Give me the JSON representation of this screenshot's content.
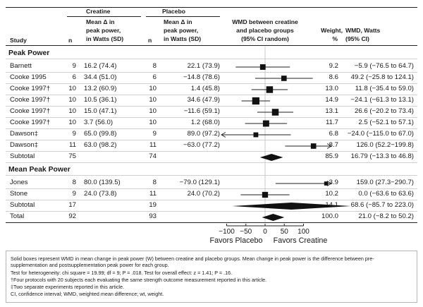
{
  "columns": {
    "creatine_group": "Creatine",
    "placebo_group": "Placebo",
    "study": "Study",
    "n": "n",
    "mean_change_line1": "Mean Δ in",
    "mean_change_line2": "peak power,",
    "mean_change_line3": "in Watts (SD)",
    "wmd_plot_line1": "WMD between creatine",
    "wmd_plot_line2": "and placebo groups",
    "wmd_plot_line3": "(95% CI random)",
    "weight_line1": "Weight,",
    "weight_line2": "%",
    "wmd_line1": "WMD, Watts",
    "wmd_line2": "(95% CI)"
  },
  "sections": [
    {
      "title": "Peak Power",
      "rows": [
        {
          "study": "Barnett",
          "n_c": "9",
          "cre": "16.2 (74.4)",
          "n_p": "8",
          "pla": "22.1 (73.9)",
          "weight": "9.2",
          "wmd": "−5.9 (−76.5 to 64.7)"
        },
        {
          "study": "Cooke 1995",
          "n_c": "6",
          "cre": "34.4 (51.0)",
          "n_p": "6",
          "pla": "−14.8 (78.6)",
          "weight": "8.6",
          "wmd": "49.2 (−25.8 to 124.1)"
        },
        {
          "study": "Cooke 1997†",
          "n_c": "10",
          "cre": "13.2 (60.9)",
          "n_p": "10",
          "pla": "1.4 (45.8)",
          "weight": "13.0",
          "wmd": "11.8 (−35.4 to 59.0)"
        },
        {
          "study": "Cooke 1997†",
          "n_c": "10",
          "cre": "10.5 (36.1)",
          "n_p": "10",
          "pla": "34.6 (47.9)",
          "weight": "14.9",
          "wmd": "−24.1 (−61.3 to 13.1)"
        },
        {
          "study": "Cooke 1997†",
          "n_c": "10",
          "cre": "15.0 (47.1)",
          "n_p": "10",
          "pla": "−11.6 (59.1)",
          "weight": "13.1",
          "wmd": "26.6 (−20.2 to 73.4)"
        },
        {
          "study": "Cooke 1997†",
          "n_c": "10",
          "cre": "3.7 (56.0)",
          "n_p": "10",
          "pla": "1.2 (68.0)",
          "weight": "11.7",
          "wmd": "2.5 (−52.1 to 57.1)"
        },
        {
          "study": "Dawson‡",
          "n_c": "9",
          "cre": "65.0 (99.8)",
          "n_p": "9",
          "pla": "89.0 (97.2)",
          "weight": "6.8",
          "wmd": "−24.0 (−115.0 to 67.0)"
        },
        {
          "study": "Dawson‡",
          "n_c": "11",
          "cre": "63.0 (98.2)",
          "n_p": "11",
          "pla": "−63.0 (77.2)",
          "weight": "8.7",
          "wmd": "126.0 (52.2−199.8)"
        },
        {
          "study": "Subtotal",
          "n_c": "75",
          "cre": "",
          "n_p": "74",
          "pla": "",
          "weight": "85.9",
          "wmd": "16.79 (−13.3 to 46.8)"
        }
      ]
    },
    {
      "title": "Mean Peak Power",
      "rows": [
        {
          "study": "Jones",
          "n_c": "8",
          "cre": "80.0 (139.5)",
          "n_p": "8",
          "pla": "−79.0 (129.1)",
          "weight": "3.9",
          "wmd": "159.0 (27.3−290.7)"
        },
        {
          "study": "Stone",
          "n_c": "9",
          "cre": "24.0 (73.8)",
          "n_p": "11",
          "pla": "24.0 (70.2)",
          "weight": "10.2",
          "wmd": "0.0 (−63.6 to 63.6)"
        },
        {
          "study": "Subtotal",
          "n_c": "17",
          "cre": "",
          "n_p": "19",
          "pla": "",
          "weight": "14.1",
          "wmd": "68.6 (−85.7 to 223.0)"
        }
      ]
    }
  ],
  "total": {
    "study": "Total",
    "n_c": "92",
    "n_p": "93",
    "weight": "100.0",
    "wmd": "21.0 (−8.2 to 50.2)"
  },
  "axis": {
    "ticks": [
      "−100",
      "−50",
      "0",
      "50",
      "100"
    ],
    "favors_left": "Favors Placebo",
    "favors_right": "Favors Creatine"
  },
  "footnotes": [
    "Solid boxes represent WMD in mean change in peak power (W) between creatine and placebo groups. Mean change in peak power is the difference between pre-",
    "supplementation and postsupplementation peak power for each group.",
    "Test for heterogeneity: chi square = 19.99; df = 9; P = .018. Test for overall effect: z = 1.41; P = .16.",
    "†Four protocols with 20 subjects each evaluating the same strength outcome measurement reported in this article.",
    "‡Two separate experiments reported in this article.",
    "CI, confidence interval; WMD, weighted mean difference; wt, weight."
  ],
  "chart_data": {
    "type": "forest",
    "xlim": [
      -100,
      100
    ],
    "x_ticks": [
      -100,
      -50,
      0,
      50,
      100
    ],
    "xlabel_left": "Favors Placebo",
    "xlabel_right": "Favors Creatine",
    "studies": [
      {
        "label": "Barnett",
        "wmd": -5.9,
        "ci": [
          -76.5,
          64.7
        ],
        "weight": 9.2
      },
      {
        "label": "Cooke 1995",
        "wmd": 49.2,
        "ci": [
          -25.8,
          124.1
        ],
        "weight": 8.6
      },
      {
        "label": "Cooke 1997†",
        "wmd": 11.8,
        "ci": [
          -35.4,
          59.0
        ],
        "weight": 13.0
      },
      {
        "label": "Cooke 1997†",
        "wmd": -24.1,
        "ci": [
          -61.3,
          13.1
        ],
        "weight": 14.9
      },
      {
        "label": "Cooke 1997†",
        "wmd": 26.6,
        "ci": [
          -20.2,
          73.4
        ],
        "weight": 13.1
      },
      {
        "label": "Cooke 1997†",
        "wmd": 2.5,
        "ci": [
          -52.1,
          57.1
        ],
        "weight": 11.7
      },
      {
        "label": "Dawson‡",
        "wmd": -24.0,
        "ci": [
          -115.0,
          67.0
        ],
        "weight": 6.8
      },
      {
        "label": "Dawson‡",
        "wmd": 126.0,
        "ci": [
          52.2,
          199.8
        ],
        "weight": 8.7
      },
      {
        "label": "Subtotal",
        "wmd": 16.79,
        "ci": [
          -13.3,
          46.8
        ],
        "weight": 85.9,
        "summary": true
      },
      {
        "label": "Jones",
        "wmd": 159.0,
        "ci": [
          27.3,
          290.7
        ],
        "weight": 3.9
      },
      {
        "label": "Stone",
        "wmd": 0.0,
        "ci": [
          -63.6,
          63.6
        ],
        "weight": 10.2
      },
      {
        "label": "Subtotal",
        "wmd": 68.6,
        "ci": [
          -85.7,
          223.0
        ],
        "weight": 14.1,
        "summary": true
      },
      {
        "label": "Total",
        "wmd": 21.0,
        "ci": [
          -8.2,
          50.2
        ],
        "weight": 100.0,
        "summary": true
      }
    ]
  }
}
